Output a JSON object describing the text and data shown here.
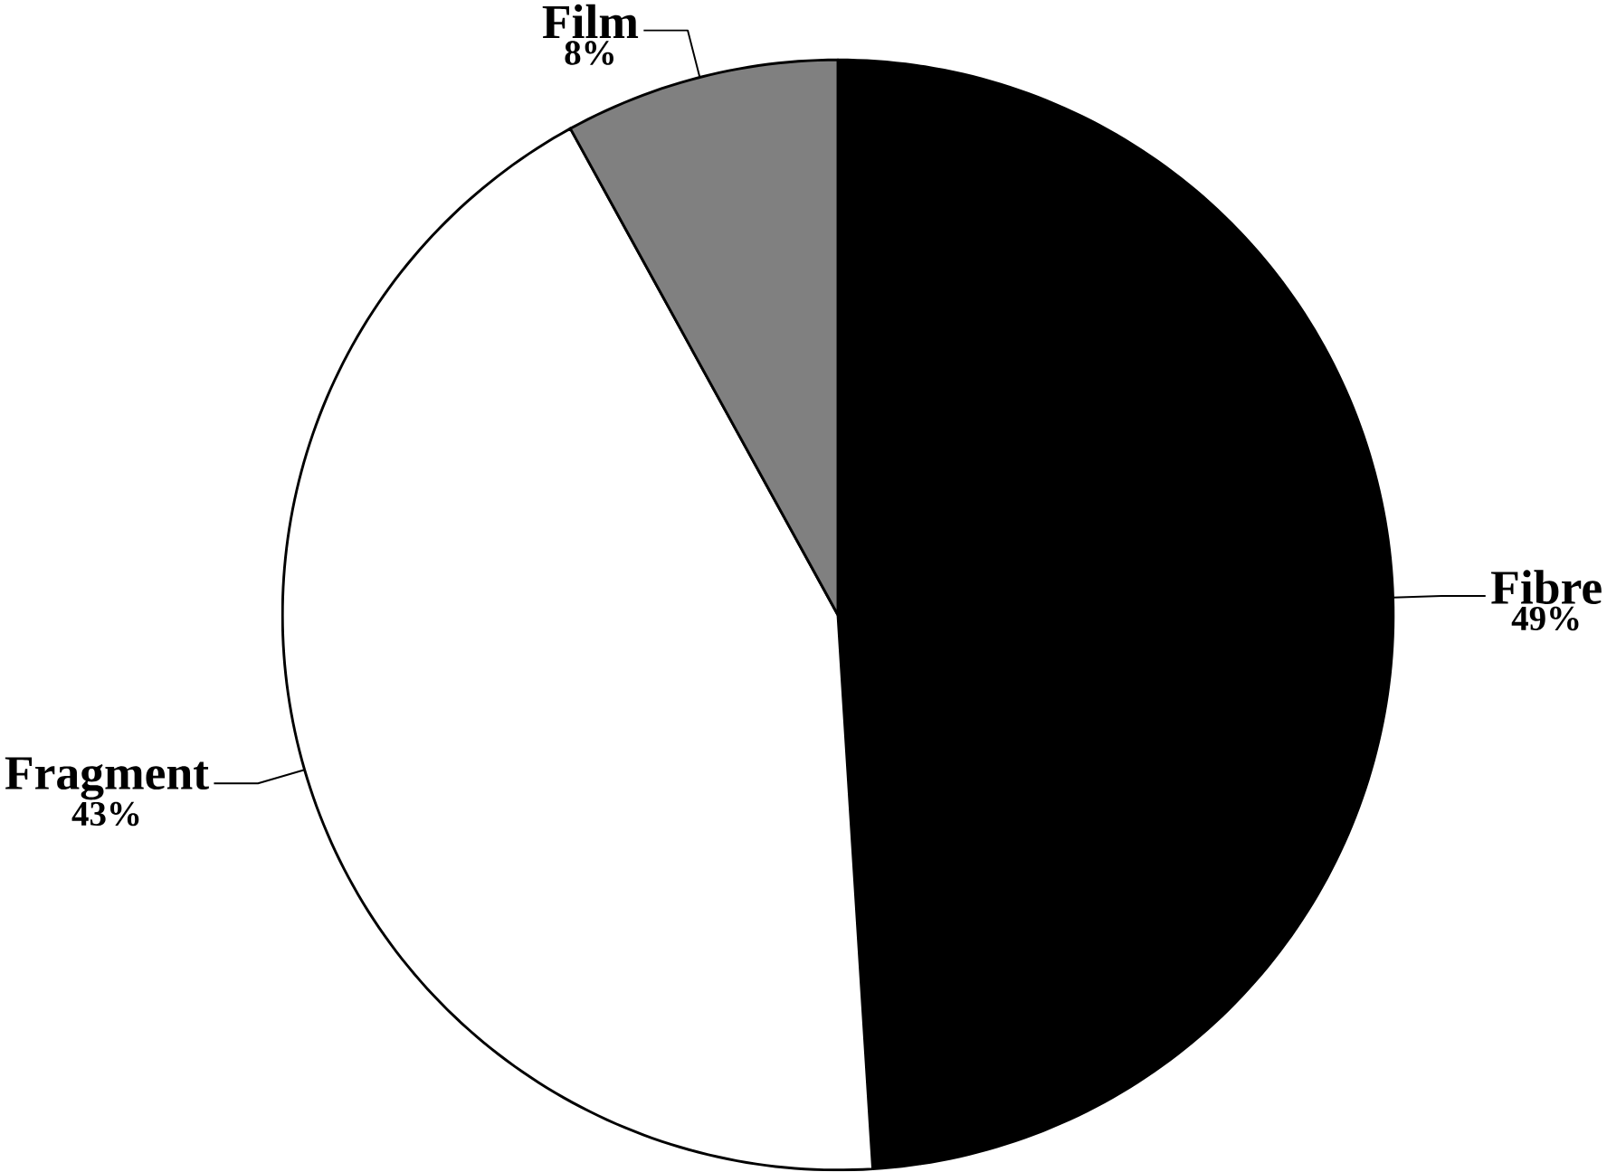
{
  "chart_data": {
    "type": "pie",
    "categories": [
      "Fibre",
      "Fragment",
      "Film"
    ],
    "values": [
      49,
      43,
      8
    ],
    "colors": [
      "#000000",
      "#ffffff",
      "#808080"
    ],
    "value_labels": [
      "49%",
      "43%",
      "8%"
    ]
  }
}
